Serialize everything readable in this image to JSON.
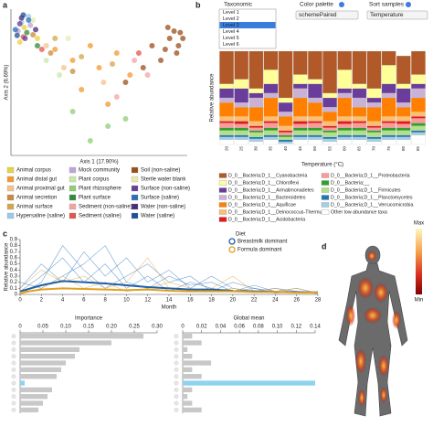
{
  "panel_labels": [
    "a",
    "b",
    "c",
    "d"
  ],
  "controls": {
    "taxonomic": {
      "label": "Taxonomic",
      "options": [
        "Level 1",
        "Level 2",
        "Level 3",
        "Level 4",
        "Level 5",
        "Level 6"
      ],
      "selected": 2
    },
    "color_palette": {
      "label": "Color palette",
      "value": "schemePaired"
    },
    "sort_samples": {
      "label": "Sort samples",
      "value": "Temperature"
    }
  },
  "body_map": {
    "max_label": "Max",
    "min_label": "Min"
  },
  "chart_data": [
    {
      "type": "scatter",
      "xlabel": "Axis 1 (17.90%)",
      "ylabel": "Axis 2 (6.69%)",
      "xlim": [
        -1,
        1
      ],
      "ylim": [
        -1,
        1
      ],
      "series": [
        {
          "name": "Animal corpus",
          "color": "#e8d33f",
          "x": [
            -0.85,
            -0.7,
            -0.9
          ],
          "y": [
            0.75,
            0.6,
            0.55
          ]
        },
        {
          "name": "Animal distal gut",
          "color": "#f29a2e",
          "x": [
            0.0,
            -0.2,
            0.2,
            -0.1,
            0.1,
            -0.3,
            0.35,
            -0.5
          ],
          "y": [
            0.2,
            -0.1,
            0.4,
            0.5,
            -0.3,
            0.3,
            0.1,
            0.45
          ]
        },
        {
          "name": "Animal proximal gut",
          "color": "#f6c08d",
          "x": [
            -0.6,
            -0.4,
            0.05
          ],
          "y": [
            0.5,
            0.2,
            0.0
          ]
        },
        {
          "name": "Animal secretion",
          "color": "#c98a3a",
          "x": [
            -0.75,
            -0.55,
            -0.3
          ],
          "y": [
            0.65,
            0.4,
            0.15
          ]
        },
        {
          "name": "Animal surface",
          "color": "#d4a64a",
          "x": [
            -0.5,
            -0.2,
            0.15
          ],
          "y": [
            0.6,
            0.35,
            0.25
          ]
        },
        {
          "name": "Hypersaline (saline)",
          "color": "#9bc9e8",
          "x": [
            -0.88,
            -0.8
          ],
          "y": [
            0.82,
            0.9
          ]
        },
        {
          "name": "Mock community",
          "color": "#bba6d6",
          "x": [
            -0.92,
            -0.78
          ],
          "y": [
            0.7,
            0.78
          ]
        },
        {
          "name": "Plant corpus",
          "color": "#c7e9a7",
          "x": [
            -0.6,
            -0.45
          ],
          "y": [
            0.3,
            0.1
          ]
        },
        {
          "name": "Plant rhizosphere",
          "color": "#8fce73",
          "x": [
            0.1,
            -0.1,
            0.3,
            -0.3
          ],
          "y": [
            -0.6,
            -0.8,
            -0.5,
            -0.4
          ]
        },
        {
          "name": "Plant surface",
          "color": "#2e8b3c",
          "x": [
            -0.82,
            -0.7
          ],
          "y": [
            0.68,
            0.5
          ]
        },
        {
          "name": "Sediment (non-saline)",
          "color": "#f4a3a3",
          "x": [
            0.4,
            0.2,
            0.55
          ],
          "y": [
            0.3,
            -0.2,
            0.1
          ]
        },
        {
          "name": "Sediment (saline)",
          "color": "#e5534b",
          "x": [
            -0.86,
            -0.65,
            0.45
          ],
          "y": [
            0.62,
            0.45,
            0.4
          ]
        },
        {
          "name": "Soil (non-saline)",
          "color": "#9b4d1a",
          "x": [
            0.8,
            0.9,
            0.85,
            0.75,
            0.95,
            0.7,
            0.5,
            0.3,
            0.6,
            0.88,
            0.78,
            0.92
          ],
          "y": [
            0.6,
            0.5,
            0.7,
            0.45,
            0.6,
            0.3,
            0.2,
            0.0,
            0.5,
            0.4,
            0.75,
            0.68
          ]
        },
        {
          "name": "Sterile water blank",
          "color": "#e9e9b0",
          "x": [
            -0.75,
            -0.35
          ],
          "y": [
            0.85,
            0.6
          ]
        },
        {
          "name": "Surface (non-saline)",
          "color": "#6a3d9a",
          "x": [
            -0.9,
            -0.84
          ],
          "y": [
            0.8,
            0.6
          ]
        },
        {
          "name": "Surface (saline)",
          "color": "#2c6fb5",
          "x": [
            -0.95,
            -0.8
          ],
          "y": [
            0.72,
            0.85
          ]
        },
        {
          "name": "Water (non-saline)",
          "color": "#4b2a7a",
          "x": [
            -0.88,
            -0.72
          ],
          "y": [
            0.88,
            0.72
          ]
        },
        {
          "name": "Water (saline)",
          "color": "#1f4e9a",
          "x": [
            -0.93,
            -0.86
          ],
          "y": [
            0.64,
            0.92
          ]
        }
      ]
    },
    {
      "type": "stacked_bar",
      "xlabel": "Temperature (°C)",
      "ylabel": "Relative abundance",
      "ylim": [
        0,
        1
      ],
      "categories": [
        "20",
        "25",
        "30",
        "35",
        "40",
        "45",
        "50",
        "55",
        "60",
        "65",
        "70",
        "75",
        "80",
        "85"
      ],
      "series": [
        {
          "name": "D_0__Bacteria;D_1__Cyanobacteria",
          "color": "#b15928",
          "values": [
            0.35,
            0.3,
            0.4,
            0.2,
            0.5,
            0.25,
            0.3,
            0.45,
            0.2,
            0.35,
            0.4,
            0.15,
            0.3,
            0.25
          ]
        },
        {
          "name": "D_0__Bacteria;D_1__Chloroflexi",
          "color": "#ffff99",
          "values": [
            0.05,
            0.1,
            0.05,
            0.15,
            0.05,
            0.1,
            0.05,
            0.05,
            0.2,
            0.05,
            0.1,
            0.2,
            0.05,
            0.1
          ]
        },
        {
          "name": "D_0__Bacteria;D_1__Armatimonadetes",
          "color": "#6a3d9a",
          "values": [
            0.1,
            0.15,
            0.05,
            0.1,
            0.1,
            0.05,
            0.15,
            0.1,
            0.05,
            0.1,
            0.05,
            0.1,
            0.15,
            0.05
          ]
        },
        {
          "name": "D_0__Bacteria;D_1__Bacteroidetes",
          "color": "#cab2d6",
          "values": [
            0.05,
            0.05,
            0.1,
            0.05,
            0.05,
            0.1,
            0.05,
            0.05,
            0.05,
            0.1,
            0.05,
            0.05,
            0.05,
            0.1
          ]
        },
        {
          "name": "D_0__Bacteria;D_1__Aquificae",
          "color": "#ff7f00",
          "values": [
            0.15,
            0.1,
            0.15,
            0.2,
            0.1,
            0.2,
            0.15,
            0.1,
            0.2,
            0.1,
            0.15,
            0.2,
            0.1,
            0.15
          ]
        },
        {
          "name": "D_0__Bacteria;D_1__Deinococcus-Thermus",
          "color": "#fdbf6f",
          "values": [
            0.05,
            0.05,
            0.05,
            0.05,
            0.05,
            0.05,
            0.05,
            0.05,
            0.05,
            0.05,
            0.05,
            0.05,
            0.05,
            0.05
          ]
        },
        {
          "name": "D_0__Bacteria;D_1__Acidobacteria",
          "color": "#e31a1c",
          "values": [
            0.02,
            0.03,
            0.02,
            0.02,
            0.02,
            0.03,
            0.02,
            0.02,
            0.03,
            0.02,
            0.02,
            0.02,
            0.03,
            0.02
          ]
        },
        {
          "name": "D_0__Bacteria;D_1__Proteobacteria",
          "color": "#fb9a99",
          "values": [
            0.05,
            0.04,
            0.03,
            0.05,
            0.03,
            0.04,
            0.05,
            0.03,
            0.04,
            0.05,
            0.03,
            0.05,
            0.04,
            0.05
          ]
        },
        {
          "name": "D_0__Bacteria;__",
          "color": "#33a02c",
          "values": [
            0.03,
            0.03,
            0.02,
            0.03,
            0.02,
            0.03,
            0.03,
            0.02,
            0.03,
            0.03,
            0.02,
            0.03,
            0.03,
            0.03
          ]
        },
        {
          "name": "D_0__Bacteria;D_1__Firmicutes",
          "color": "#b2df8a",
          "values": [
            0.05,
            0.05,
            0.05,
            0.05,
            0.03,
            0.05,
            0.05,
            0.05,
            0.05,
            0.05,
            0.05,
            0.05,
            0.05,
            0.05
          ]
        },
        {
          "name": "D_0__Bacteria;D_1__Planctomycetes",
          "color": "#1f78b4",
          "values": [
            0.02,
            0.02,
            0.02,
            0.02,
            0.02,
            0.02,
            0.02,
            0.02,
            0.02,
            0.02,
            0.02,
            0.02,
            0.02,
            0.02
          ]
        },
        {
          "name": "D_0__Bacteria;D_1__Verrucomicrobia",
          "color": "#a6cee3",
          "values": [
            0.03,
            0.03,
            0.03,
            0.03,
            0.02,
            0.03,
            0.03,
            0.03,
            0.03,
            0.03,
            0.03,
            0.03,
            0.03,
            0.03
          ]
        },
        {
          "name": "Other low abundance taxa",
          "color": "#ffffff",
          "values": [
            0.05,
            0.05,
            0.03,
            0.05,
            0.01,
            0.05,
            0.05,
            0.03,
            0.05,
            0.05,
            0.03,
            0.05,
            0.05,
            0.1
          ]
        }
      ]
    },
    {
      "type": "line",
      "xlabel": "Month",
      "ylabel": "Relative abundance",
      "legend_title": "Diet",
      "xlim": [
        0,
        28
      ],
      "ylim": [
        0,
        0.9
      ],
      "xticks": [
        0,
        2,
        4,
        6,
        8,
        10,
        12,
        14,
        16,
        18,
        20,
        22,
        24,
        26,
        28
      ],
      "yticks": [
        0,
        0.1,
        0.2,
        0.3,
        0.4,
        0.5,
        0.6,
        0.7,
        0.8,
        0.9
      ],
      "x": [
        0,
        2,
        4,
        6,
        8,
        10,
        12,
        14,
        16,
        18,
        20,
        22,
        24,
        26,
        28
      ],
      "series": [
        {
          "color": "#3a7cc2",
          "values": [
            0.05,
            0.3,
            0.6,
            0.2,
            0.5,
            0.1,
            0.3,
            0.05,
            0.2,
            0.1,
            0.05,
            0.1,
            0.05,
            0.02,
            0.05
          ]
        },
        {
          "color": "#3a7cc2",
          "values": [
            0.1,
            0.5,
            0.2,
            0.7,
            0.3,
            0.6,
            0.2,
            0.4,
            0.1,
            0.3,
            0.1,
            0.05,
            0.1,
            0.05,
            0.03
          ]
        },
        {
          "color": "#3a7cc2",
          "values": [
            0.0,
            0.2,
            0.8,
            0.4,
            0.1,
            0.3,
            0.5,
            0.2,
            0.3,
            0.05,
            0.2,
            0.1,
            0.02,
            0.05,
            0.01
          ]
        },
        {
          "color": "#3a7cc2",
          "values": [
            0.2,
            0.1,
            0.3,
            0.5,
            0.8,
            0.2,
            0.1,
            0.3,
            0.15,
            0.2,
            0.05,
            0.15,
            0.05,
            0.1,
            0.02
          ]
        },
        {
          "color": "#e8a33a",
          "values": [
            0.1,
            0.4,
            0.2,
            0.3,
            0.1,
            0.2,
            0.6,
            0.1,
            0.05,
            0.1,
            0.3,
            0.05,
            0.1,
            0.02,
            0.05
          ]
        },
        {
          "color": "#e8a33a",
          "values": [
            0.0,
            0.1,
            0.3,
            0.1,
            0.2,
            0.05,
            0.1,
            0.2,
            0.1,
            0.05,
            0.1,
            0.05,
            0.05,
            0.1,
            0.02
          ]
        },
        {
          "name": "Breastmilk dominant",
          "color": "#1f5fa8",
          "values": [
            0.05,
            0.15,
            0.22,
            0.2,
            0.18,
            0.15,
            0.12,
            0.1,
            0.08,
            0.08,
            0.06,
            0.05,
            0.04,
            0.04,
            0.03
          ]
        },
        {
          "name": "Formula dominant",
          "color": "#e0a020",
          "values": [
            0.03,
            0.08,
            0.1,
            0.09,
            0.08,
            0.07,
            0.08,
            0.06,
            0.05,
            0.05,
            0.05,
            0.04,
            0.04,
            0.03,
            0.03
          ]
        }
      ]
    },
    {
      "type": "hbar",
      "title": "Importance",
      "xlim": [
        0,
        0.3
      ],
      "xticks": [
        0,
        0.05,
        {
          "value": 0.1,
          "label": "0.10"
        },
        0.15,
        {
          "value": 0.2,
          "label": "0.20"
        },
        0.25,
        {
          "value": 0.3,
          "label": "0.30"
        }
      ],
      "values": [
        0.27,
        0.2,
        0.13,
        0.12,
        0.1,
        0.09,
        0.08,
        0.01,
        0.07,
        0.06,
        0.05,
        0.04
      ],
      "color": "#c8c8c8",
      "highlight_index": 7,
      "highlight_color": "#8fd3ef"
    },
    {
      "type": "hbar",
      "title": "Global mean",
      "xlim": [
        0,
        0.14
      ],
      "xticks": [
        0,
        0.02,
        0.04,
        0.06,
        0.08,
        {
          "value": 0.1,
          "label": "0.10"
        },
        0.12,
        0.14
      ],
      "values": [
        0.01,
        0.02,
        0.005,
        0.01,
        0.03,
        0.01,
        0.02,
        0.14,
        0.01,
        0.005,
        0.01,
        0.02
      ],
      "color": "#c8c8c8",
      "highlight_index": 7,
      "highlight_color": "#8fd3ef"
    }
  ]
}
